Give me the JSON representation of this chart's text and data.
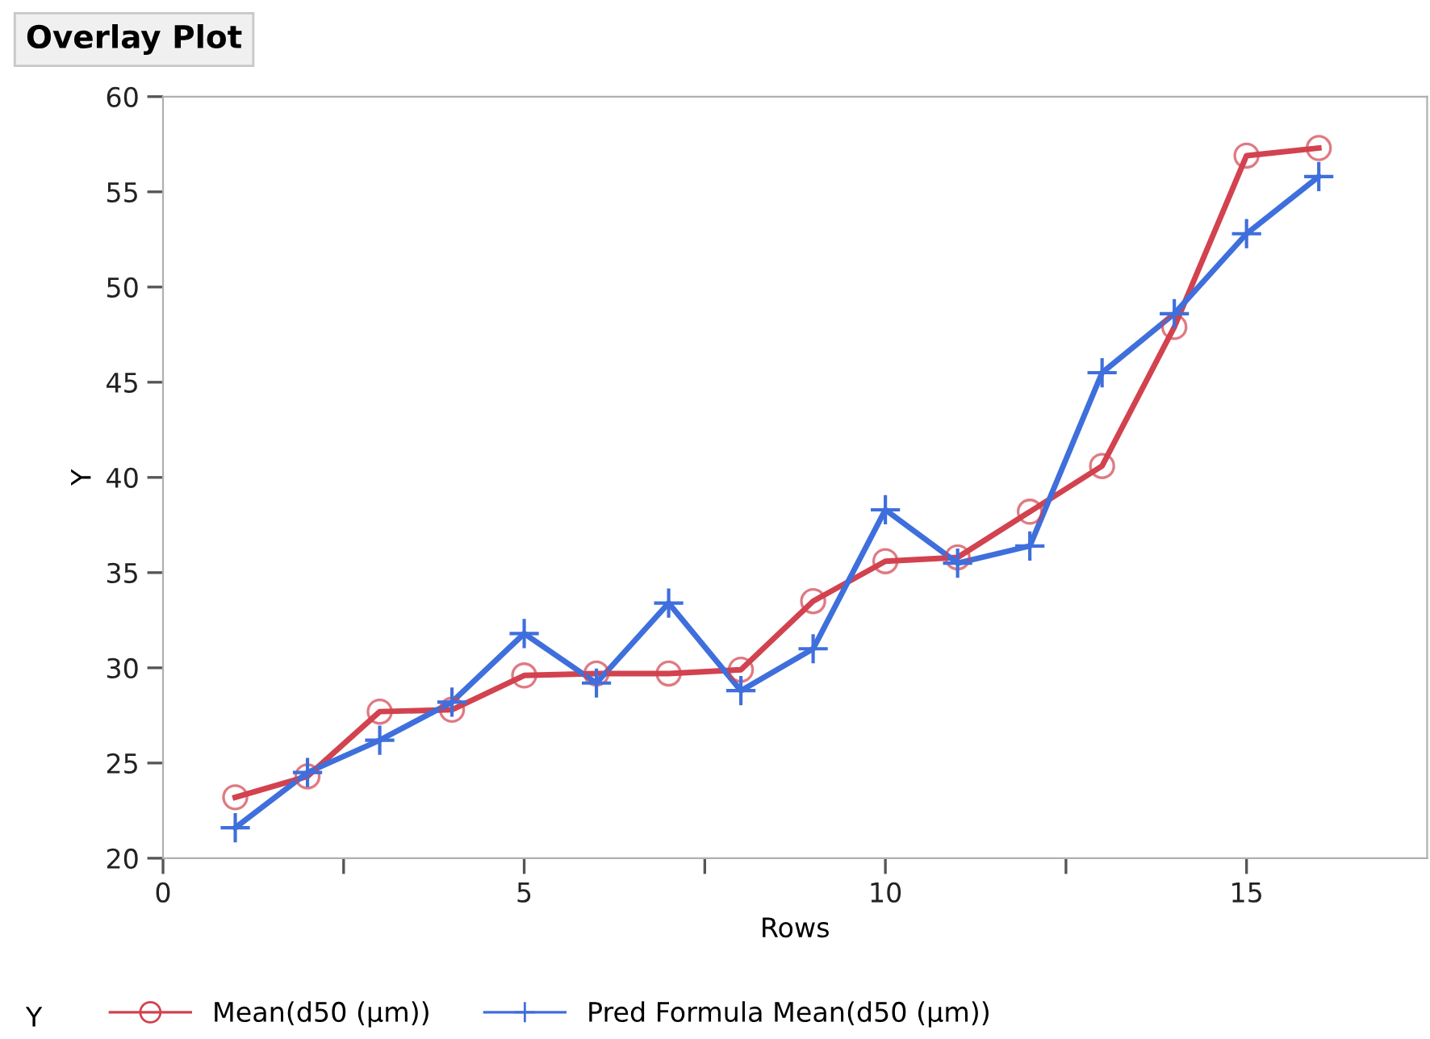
{
  "chart_data": {
    "type": "line",
    "title": "Overlay Plot",
    "xlabel": "Rows",
    "ylabel": "Y",
    "legend_title": "Y",
    "x": [
      1,
      2,
      3,
      4,
      5,
      6,
      7,
      8,
      9,
      10,
      11,
      12,
      13,
      14,
      15,
      16
    ],
    "series": [
      {
        "name": "Mean(d50 (µm))",
        "color": "#d2424f",
        "marker": "circle",
        "values": [
          23.2,
          24.3,
          27.7,
          27.8,
          29.6,
          29.7,
          29.7,
          29.9,
          33.5,
          35.6,
          35.8,
          38.2,
          40.6,
          47.9,
          56.9,
          57.3
        ]
      },
      {
        "name": "Pred Formula Mean(d50 (µm))",
        "color": "#3f6fdc",
        "marker": "cross",
        "values": [
          21.6,
          24.5,
          26.2,
          28.2,
          31.8,
          29.2,
          33.4,
          28.8,
          31.0,
          38.3,
          35.5,
          36.4,
          45.5,
          48.6,
          52.8,
          55.8
        ]
      }
    ],
    "xlim": [
      0,
      17.5
    ],
    "xticks": [
      0,
      {
        "value": 2.5,
        "label": null
      },
      5,
      {
        "value": 7.5,
        "label": null
      },
      10,
      {
        "value": 12.5,
        "label": null
      },
      15
    ],
    "ylim": [
      20,
      60
    ],
    "yticks": [
      20,
      25,
      30,
      35,
      40,
      45,
      50,
      55,
      60
    ],
    "grid": false,
    "legend": "bottom",
    "line_style": "solid"
  }
}
